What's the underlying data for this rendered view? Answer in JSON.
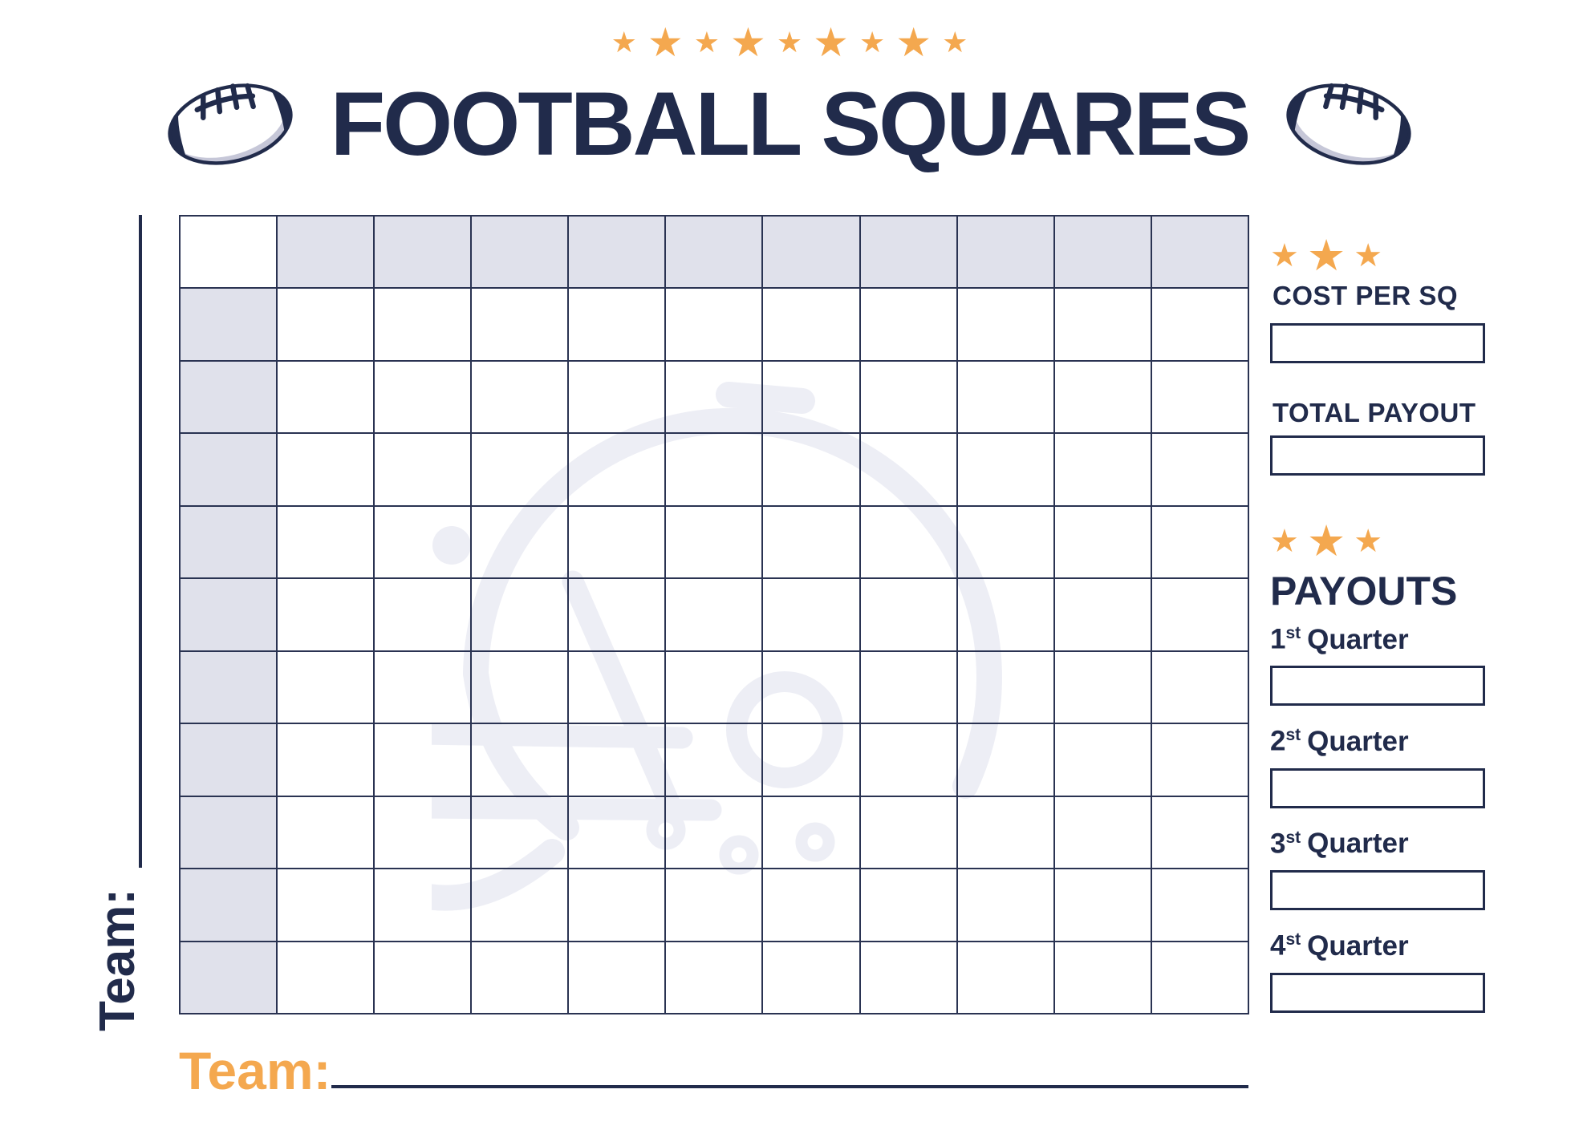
{
  "icons": {
    "star": "★"
  },
  "header": {
    "title": "FOOTBALL SQUARES",
    "stars_count": 9
  },
  "board": {
    "rows": 11,
    "cols": 11,
    "team_left_label": "Team:"
  },
  "footer": {
    "team_label": "Team:"
  },
  "sidebar": {
    "stars_count": 3,
    "cost_per_sq": {
      "label": "COST PER SQ",
      "value": ""
    },
    "total_payout": {
      "label": "TOTAL PAYOUT",
      "value": ""
    },
    "payouts": {
      "title": "PAYOUTS",
      "items": [
        {
          "number": "1",
          "ordinal": "st",
          "word": "Quarter",
          "value": ""
        },
        {
          "number": "2",
          "ordinal": "st",
          "word": "Quarter",
          "value": ""
        },
        {
          "number": "3",
          "ordinal": "st",
          "word": "Quarter",
          "value": ""
        },
        {
          "number": "4",
          "ordinal": "st",
          "word": "Quarter",
          "value": ""
        }
      ]
    }
  },
  "colors": {
    "navy": "#212B4B",
    "grid_line": "#2A3352",
    "orange": "#F4A84F",
    "cell_shade": "#E0E1EB",
    "ball_shadow": "#C6C7D8",
    "watermark": "#EDEEF5"
  }
}
